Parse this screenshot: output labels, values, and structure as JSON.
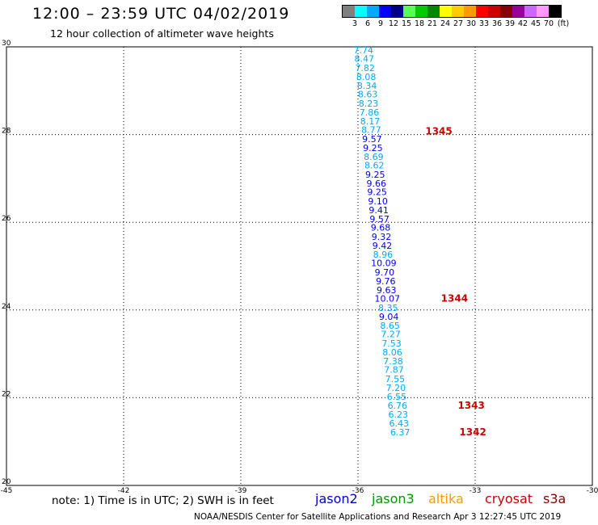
{
  "header": {
    "title": "12:00 – 23:59 UTC 04/02/2019",
    "subtitle": "12 hour collection of altimeter wave heights"
  },
  "legend": {
    "unit": "(ft)",
    "colors": [
      "#7f7f7f",
      "#00ffff",
      "#00aaff",
      "#0000ff",
      "#00008b",
      "#55ff55",
      "#00cc00",
      "#008800",
      "#ffff00",
      "#ffcc00",
      "#ff9900",
      "#ff0000",
      "#cc0000",
      "#880000",
      "#990099",
      "#cc66ff",
      "#ff99ff",
      "#000000"
    ],
    "labels": [
      "3",
      "6",
      "9",
      "12",
      "15",
      "18",
      "21",
      "24",
      "27",
      "30",
      "33",
      "36",
      "39",
      "42",
      "45",
      "70"
    ]
  },
  "chart_data": {
    "type": "scatter",
    "title": "12:00 – 23:59 UTC 04/02/2019",
    "subtitle": "12 hour collection of altimeter wave heights",
    "xlabel": "",
    "ylabel": "",
    "xlim": [
      -45,
      -30
    ],
    "ylim": [
      20,
      30
    ],
    "xticks": [
      -45,
      -42,
      -39,
      -36,
      -33,
      -30
    ],
    "yticks": [
      20,
      22,
      24,
      26,
      28,
      30
    ],
    "grid": true,
    "units": "ft",
    "points": [
      {
        "lon": -35.86,
        "lat": 29.93,
        "swh": "7.74",
        "color": "#00aaff"
      },
      {
        "lon": -35.84,
        "lat": 29.73,
        "swh": "8.47",
        "color": "#00aaff"
      },
      {
        "lon": -35.82,
        "lat": 29.52,
        "swh": "7.82",
        "color": "#00aaff"
      },
      {
        "lon": -35.79,
        "lat": 29.32,
        "swh": "8.08",
        "color": "#00aaff"
      },
      {
        "lon": -35.77,
        "lat": 29.12,
        "swh": "8.34",
        "color": "#00aaff"
      },
      {
        "lon": -35.75,
        "lat": 28.92,
        "swh": "8.63",
        "color": "#00aaff"
      },
      {
        "lon": -35.73,
        "lat": 28.71,
        "swh": "8.23",
        "color": "#00aaff"
      },
      {
        "lon": -35.71,
        "lat": 28.51,
        "swh": "7.86",
        "color": "#00aaff"
      },
      {
        "lon": -35.69,
        "lat": 28.31,
        "swh": "8.17",
        "color": "#00aaff"
      },
      {
        "lon": -35.66,
        "lat": 28.11,
        "swh": "8.77",
        "color": "#00aaff"
      },
      {
        "lon": -35.64,
        "lat": 27.9,
        "swh": "9.57",
        "color": "#0000ff"
      },
      {
        "lon": -35.62,
        "lat": 27.7,
        "swh": "9.25",
        "color": "#0000ff"
      },
      {
        "lon": -35.6,
        "lat": 27.5,
        "swh": "8.69",
        "color": "#00aaff"
      },
      {
        "lon": -35.58,
        "lat": 27.3,
        "swh": "8.62",
        "color": "#00aaff"
      },
      {
        "lon": -35.56,
        "lat": 27.09,
        "swh": "9.25",
        "color": "#0000ff"
      },
      {
        "lon": -35.53,
        "lat": 26.89,
        "swh": "9.66",
        "color": "#0000ff"
      },
      {
        "lon": -35.51,
        "lat": 26.69,
        "swh": "9.25",
        "color": "#0000ff"
      },
      {
        "lon": -35.49,
        "lat": 26.48,
        "swh": "9.10",
        "color": "#0000ff"
      },
      {
        "lon": -35.47,
        "lat": 26.28,
        "swh": "9.41",
        "color": "#0000ff"
      },
      {
        "lon": -35.45,
        "lat": 26.08,
        "swh": "9.57",
        "color": "#0000ff"
      },
      {
        "lon": -35.42,
        "lat": 25.88,
        "swh": "9.68",
        "color": "#0000ff"
      },
      {
        "lon": -35.4,
        "lat": 25.67,
        "swh": "9.32",
        "color": "#0000ff"
      },
      {
        "lon": -35.38,
        "lat": 25.47,
        "swh": "9.42",
        "color": "#0000ff"
      },
      {
        "lon": -35.36,
        "lat": 25.27,
        "swh": "8.96",
        "color": "#00aaff"
      },
      {
        "lon": -35.34,
        "lat": 25.07,
        "swh": "10.09",
        "color": "#0000ff"
      },
      {
        "lon": -35.32,
        "lat": 24.86,
        "swh": "9.70",
        "color": "#0000ff"
      },
      {
        "lon": -35.29,
        "lat": 24.66,
        "swh": "9.76",
        "color": "#0000ff"
      },
      {
        "lon": -35.27,
        "lat": 24.46,
        "swh": "9.63",
        "color": "#0000ff"
      },
      {
        "lon": -35.25,
        "lat": 24.26,
        "swh": "10.07",
        "color": "#0000ff"
      },
      {
        "lon": -35.23,
        "lat": 24.05,
        "swh": "8.35",
        "color": "#00aaff"
      },
      {
        "lon": -35.21,
        "lat": 23.85,
        "swh": "9.04",
        "color": "#0000ff"
      },
      {
        "lon": -35.18,
        "lat": 23.65,
        "swh": "8.65",
        "color": "#00aaff"
      },
      {
        "lon": -35.16,
        "lat": 23.45,
        "swh": "7.27",
        "color": "#00aaff"
      },
      {
        "lon": -35.14,
        "lat": 23.24,
        "swh": "7.53",
        "color": "#00aaff"
      },
      {
        "lon": -35.12,
        "lat": 23.04,
        "swh": "8.06",
        "color": "#00aaff"
      },
      {
        "lon": -35.1,
        "lat": 22.84,
        "swh": "7.38",
        "color": "#00aaff"
      },
      {
        "lon": -35.08,
        "lat": 22.64,
        "swh": "7.87",
        "color": "#00aaff"
      },
      {
        "lon": -35.05,
        "lat": 22.43,
        "swh": "7.55",
        "color": "#00aaff"
      },
      {
        "lon": -35.03,
        "lat": 22.23,
        "swh": "7.20",
        "color": "#00aaff"
      },
      {
        "lon": -35.01,
        "lat": 22.03,
        "swh": "6.55",
        "color": "#00aaff"
      },
      {
        "lon": -34.99,
        "lat": 21.82,
        "swh": "6.76",
        "color": "#00aaff"
      },
      {
        "lon": -34.97,
        "lat": 21.62,
        "swh": "6.23",
        "color": "#00aaff"
      },
      {
        "lon": -34.95,
        "lat": 21.42,
        "swh": "6.43",
        "color": "#00aaff"
      },
      {
        "lon": -34.92,
        "lat": 21.22,
        "swh": "6.37",
        "color": "#00aaff"
      }
    ],
    "annotations": [
      {
        "text": "1345",
        "lon": -33.93,
        "lat": 28.08,
        "color": "#cc0000"
      },
      {
        "text": "1344",
        "lon": -33.53,
        "lat": 24.26,
        "color": "#cc0000"
      },
      {
        "text": "1343",
        "lon": -33.1,
        "lat": 21.82,
        "color": "#cc0000"
      },
      {
        "text": "1342",
        "lon": -33.06,
        "lat": 21.22,
        "color": "#cc0000"
      }
    ]
  },
  "footer": {
    "note": "note:  1) Time is in UTC;  2) SWH is in feet",
    "satellites": [
      {
        "name": "jason2",
        "color": "#0000cc"
      },
      {
        "name": "jason3",
        "color": "#009900"
      },
      {
        "name": "altika",
        "color": "#ff9900"
      },
      {
        "name": "cryosat",
        "color": "#cc0000"
      },
      {
        "name": "s3a",
        "color": "#880000"
      }
    ],
    "credit": "NOAA/NESDIS Center for Satellite Applications and Research     Apr  3 12:27:45 UTC 2019"
  }
}
